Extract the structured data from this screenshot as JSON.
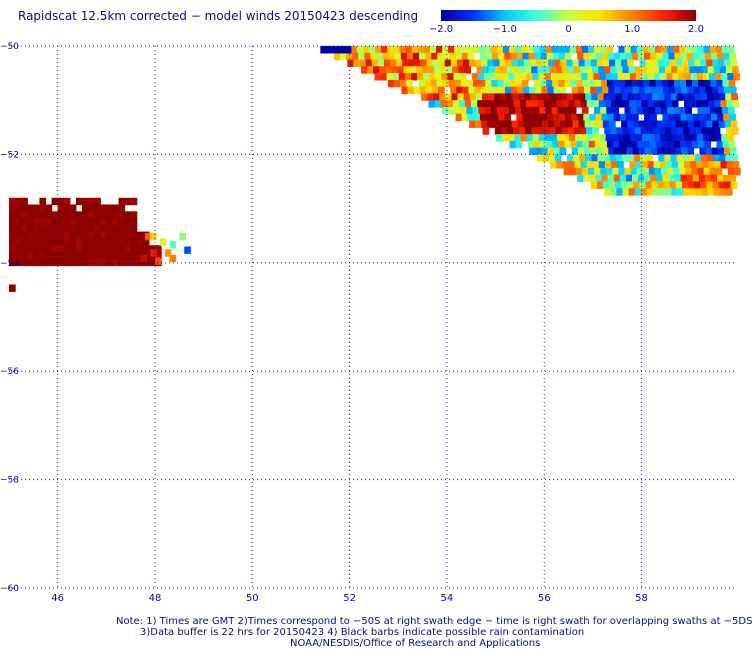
{
  "title": "Rapidscat 12.5km corrected − model winds 20150423 descending",
  "colorbar": {
    "range": [
      -2.0,
      2.0
    ],
    "tick_labels": [
      "−2.0",
      "−1.0",
      "0",
      "1.0",
      "2.0"
    ],
    "tick_values": [
      -2.0,
      -1.0,
      0.0,
      1.0,
      2.0
    ],
    "colors": [
      "#0000a0",
      "#0030ff",
      "#00c8ff",
      "#40ffd8",
      "#c8ff40",
      "#ffe000",
      "#ff8000",
      "#ff2000",
      "#8c0000"
    ]
  },
  "notes": {
    "line1": "Note: 1) Times are GMT 2)Times correspond to −50S at right swath edge − time is right swath for overlapping swaths at −5DS",
    "line2": "3)Data buffer is 22 hrs for 20150423 4) Black barbs indicate possible rain contamination",
    "line3": "NOAA/NESDIS/Office of Research and Applications"
  },
  "chart_data": {
    "type": "heatmap",
    "title": "Rapidscat 12.5km corrected − model winds 20150423 descending",
    "xlabel": "",
    "ylabel": "",
    "xlim": [
      45.0,
      59.9
    ],
    "ylim": [
      -60.0,
      -50.0
    ],
    "x_ticks": [
      46,
      48,
      50,
      52,
      54,
      56,
      58
    ],
    "x_tick_labels": [
      "46",
      "48",
      "50",
      "52",
      "54",
      "56",
      "58"
    ],
    "y_ticks": [
      -50,
      -52,
      -54,
      -56,
      -58,
      -60
    ],
    "y_tick_labels": [
      "−50",
      "−52",
      "−54",
      "−56",
      "−58",
      "−60"
    ],
    "grid": true,
    "cell_size_deg": 0.125,
    "colormap_range": [
      -2.0,
      2.0
    ],
    "patches": [
      {
        "region": "west-swath",
        "lon": [
          45.0,
          48.8
        ],
        "lat": [
          -54.0,
          -52.8
        ],
        "typical_value": 2.0
      },
      {
        "region": "east-swath",
        "lon": [
          51.4,
          59.9
        ],
        "lat": [
          -52.7,
          -50.0
        ],
        "typical_value": 0.0
      }
    ]
  }
}
